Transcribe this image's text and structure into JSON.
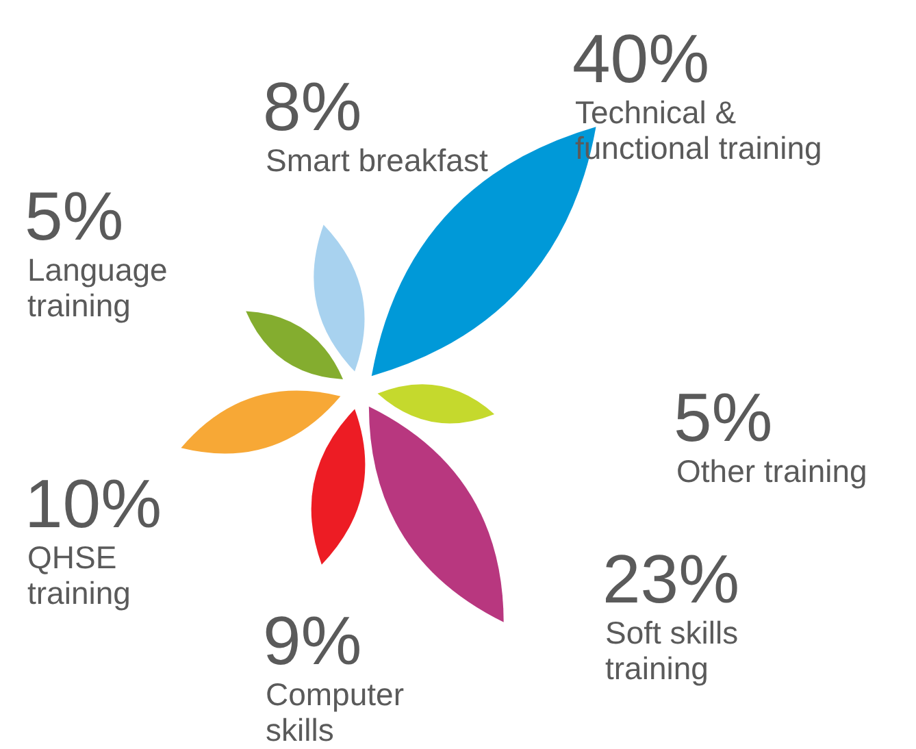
{
  "chart_data": {
    "type": "other",
    "categories": [
      "Technical & functional training",
      "Other training",
      "Soft skills training",
      "Computer skills",
      "QHSE training",
      "Language training",
      "Smart breakfast"
    ],
    "values": [
      40,
      5,
      23,
      9,
      10,
      5,
      8
    ],
    "value_labels": [
      "40%",
      "5%",
      "23%",
      "9%",
      "10%",
      "5%",
      "8%"
    ],
    "colors": [
      "#0099d8",
      "#c5d92d",
      "#b8377f",
      "#ed1c24",
      "#f7a836",
      "#84ad2f",
      "#a8d2ef"
    ]
  }
}
